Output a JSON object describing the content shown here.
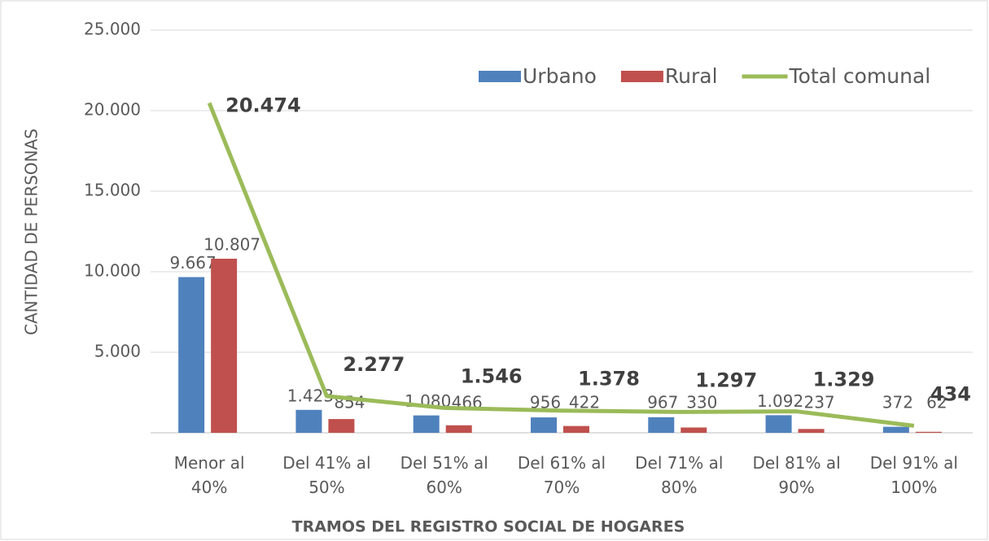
{
  "chart_data": {
    "type": "bar_line",
    "x_label": "TRAMOS DEL REGISTRO SOCIAL DE HOGARES",
    "y_label": "CANTIDAD DE PERSONAS",
    "categories": [
      "Menor al 40%",
      "Del 41% al 50%",
      "Del 51% al 60%",
      "Del 61% al 70%",
      "Del 71% al 80%",
      "Del 81% al 90%",
      "Del 91% al 100%"
    ],
    "series": [
      {
        "name": "Urbano",
        "type": "bar",
        "color": "#4f81bd",
        "values": [
          9667,
          1423,
          1080,
          956,
          967,
          1092,
          372
        ],
        "value_labels": [
          "9.667",
          "1.423",
          "1.080",
          "956",
          "967",
          "1.092",
          "372"
        ]
      },
      {
        "name": "Rural",
        "type": "bar",
        "color": "#c0504d",
        "values": [
          10807,
          854,
          466,
          422,
          330,
          237,
          62
        ],
        "value_labels": [
          "10.807",
          "854",
          "466",
          "422",
          "330",
          "237",
          "62"
        ]
      },
      {
        "name": "Total comunal",
        "type": "line",
        "color": "#9bbb59",
        "values": [
          20474,
          2277,
          1546,
          1378,
          1297,
          1329,
          434
        ],
        "value_labels": [
          "20.474",
          "2.277",
          "1.546",
          "1.378",
          "1.297",
          "1.329",
          "434"
        ]
      }
    ],
    "ylim": [
      0,
      25000
    ],
    "yticks": [
      {
        "value": 5000,
        "label": "5.000"
      },
      {
        "value": 10000,
        "label": "10.000"
      },
      {
        "value": 15000,
        "label": "15.000"
      },
      {
        "value": 20000,
        "label": "20.000"
      },
      {
        "value": 25000,
        "label": "25.000"
      }
    ],
    "grid": true,
    "legend": "top-right"
  }
}
